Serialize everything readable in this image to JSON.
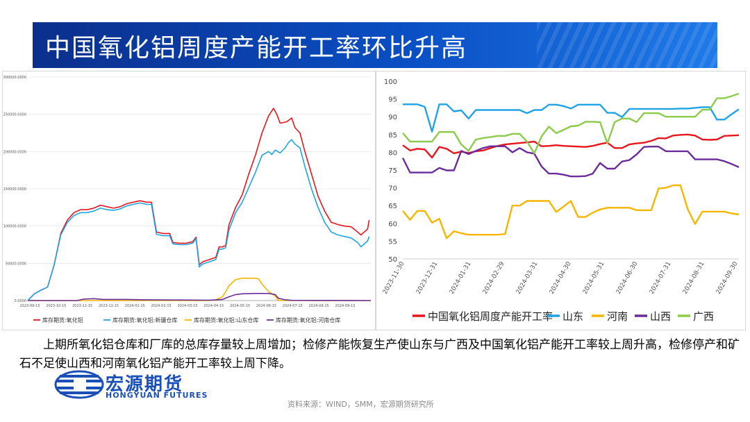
{
  "header": {
    "title": "中国氧化铝周度产能开工率环比升高"
  },
  "description": "上期所氧化铝仓库和厂库的总库存量较上周增加；检修产能恢复生产使山东与广西及中国氧化铝产能开工率较上周升高，检修停产和矿石不足使山西和河南氧化铝产能开工率较上周下降。",
  "logo": {
    "name_cn": "宏源期货",
    "name_en": "HONGYUAN FUTURES"
  },
  "source": "资料来源：WIND，SMM，宏源期货研究所",
  "colors": {
    "title_bg": "#0a4fc4",
    "red": "#e8151b",
    "blue": "#1fa3e6",
    "yellow": "#f7b500",
    "purple": "#6a2c9a",
    "green": "#8ccb4a"
  },
  "chart_data": [
    {
      "type": "line",
      "ylim": [
        0,
        300000
      ],
      "yticks": [
        "0.0000",
        "50000.0000",
        "100000.0000",
        "150000.0000",
        "200000.0000",
        "250000.0000",
        "300000.0000"
      ],
      "xticks": [
        "2023-09-15",
        "2023-10-15",
        "2023-11-15",
        "2023-12-15",
        "2024-01-15",
        "2024-02-15",
        "2024-03-15",
        "2024-04-15",
        "2024-05-15",
        "2024-06-15",
        "2024-07-15",
        "2024-08-15",
        "2024-09-15"
      ],
      "legend_position": "bottom",
      "series": [
        {
          "name": "库存期货:氧化铝",
          "color": "#e8151b",
          "points": [
            [
              0,
              0
            ],
            [
              4,
              9000
            ],
            [
              8,
              14000
            ],
            [
              12,
              18000
            ],
            [
              16,
              48000
            ],
            [
              20,
              90000
            ],
            [
              24,
              108000
            ],
            [
              28,
              118000
            ],
            [
              32,
              122000
            ],
            [
              36,
              122000
            ],
            [
              40,
              124000
            ],
            [
              44,
              128000
            ],
            [
              48,
              126000
            ],
            [
              52,
              124000
            ],
            [
              56,
              126000
            ],
            [
              60,
              130000
            ],
            [
              64,
              132000
            ],
            [
              68,
              134000
            ],
            [
              72,
              132000
            ],
            [
              75,
              132000
            ],
            [
              78,
              92000
            ],
            [
              82,
              90000
            ],
            [
              86,
              90000
            ],
            [
              88,
              78000
            ],
            [
              92,
              77000
            ],
            [
              96,
              77000
            ],
            [
              100,
              79000
            ],
            [
              102,
              85000
            ],
            [
              104,
              48000
            ],
            [
              106,
              52000
            ],
            [
              110,
              55000
            ],
            [
              114,
              58000
            ],
            [
              116,
              72000
            ],
            [
              118,
              72000
            ],
            [
              120,
              74000
            ],
            [
              122,
              102000
            ],
            [
              126,
              125000
            ],
            [
              130,
              142000
            ],
            [
              134,
              170000
            ],
            [
              138,
              195000
            ],
            [
              142,
              225000
            ],
            [
              146,
              248000
            ],
            [
              149,
              258000
            ],
            [
              151,
              250000
            ],
            [
              153,
              238000
            ],
            [
              157,
              240000
            ],
            [
              160,
              245000
            ],
            [
              162,
              232000
            ],
            [
              165,
              225000
            ],
            [
              168,
              200000
            ],
            [
              172,
              170000
            ],
            [
              176,
              140000
            ],
            [
              180,
              120000
            ],
            [
              184,
              105000
            ],
            [
              188,
              102000
            ],
            [
              192,
              100000
            ],
            [
              196,
              99000
            ],
            [
              200,
              92000
            ],
            [
              202,
              88000
            ],
            [
              204,
              92000
            ],
            [
              206,
              96000
            ],
            [
              207,
              108000
            ]
          ]
        },
        {
          "name": "库存期货:氧化铝:新疆仓库",
          "color": "#1fa3e6",
          "points": [
            [
              0,
              0
            ],
            [
              4,
              9000
            ],
            [
              8,
              14000
            ],
            [
              12,
              18000
            ],
            [
              16,
              48000
            ],
            [
              20,
              88000
            ],
            [
              24,
              105000
            ],
            [
              28,
              114000
            ],
            [
              32,
              118000
            ],
            [
              36,
              118000
            ],
            [
              40,
              120000
            ],
            [
              44,
              124000
            ],
            [
              48,
              122000
            ],
            [
              52,
              121000
            ],
            [
              56,
              123000
            ],
            [
              60,
              127000
            ],
            [
              64,
              129000
            ],
            [
              68,
              131000
            ],
            [
              72,
              129000
            ],
            [
              75,
              129000
            ],
            [
              78,
              89000
            ],
            [
              82,
              87000
            ],
            [
              86,
              87000
            ],
            [
              88,
              76000
            ],
            [
              92,
              75000
            ],
            [
              96,
              75000
            ],
            [
              100,
              77000
            ],
            [
              102,
              83000
            ],
            [
              104,
              45000
            ],
            [
              106,
              49000
            ],
            [
              110,
              52000
            ],
            [
              114,
              55000
            ],
            [
              116,
              69000
            ],
            [
              118,
              69000
            ],
            [
              120,
              71000
            ],
            [
              122,
              95000
            ],
            [
              126,
              118000
            ],
            [
              130,
              132000
            ],
            [
              134,
              152000
            ],
            [
              138,
              172000
            ],
            [
              142,
              195000
            ],
            [
              146,
              200000
            ],
            [
              148,
              196000
            ],
            [
              150,
              202000
            ],
            [
              153,
              198000
            ],
            [
              156,
              205000
            ],
            [
              158,
              212000
            ],
            [
              160,
              216000
            ],
            [
              162,
              210000
            ],
            [
              165,
              205000
            ],
            [
              168,
              180000
            ],
            [
              172,
              150000
            ],
            [
              176,
              125000
            ],
            [
              180,
              105000
            ],
            [
              184,
              92000
            ],
            [
              188,
              88000
            ],
            [
              192,
              86000
            ],
            [
              196,
              84000
            ],
            [
              200,
              78000
            ],
            [
              202,
              72000
            ],
            [
              204,
              76000
            ],
            [
              206,
              80000
            ],
            [
              207,
              86000
            ]
          ]
        },
        {
          "name": "库存期货:氧化铝:山东仓库",
          "color": "#f7b500",
          "points": [
            [
              0,
              0
            ],
            [
              110,
              0
            ],
            [
              114,
              1000
            ],
            [
              118,
              5000
            ],
            [
              120,
              12000
            ],
            [
              122,
              20000
            ],
            [
              126,
              28000
            ],
            [
              130,
              30000
            ],
            [
              134,
              30000
            ],
            [
              138,
              30000
            ],
            [
              140,
              29000
            ],
            [
              142,
              22000
            ],
            [
              146,
              12000
            ],
            [
              150,
              6000
            ],
            [
              152,
              0
            ],
            [
              208,
              0
            ]
          ]
        },
        {
          "name": "库存期货:氧化铝:河南仓库",
          "color": "#6a2c9a",
          "points": [
            [
              0,
              0
            ],
            [
              30,
              0
            ],
            [
              34,
              2000
            ],
            [
              40,
              2500
            ],
            [
              46,
              1500
            ],
            [
              60,
              1500
            ],
            [
              70,
              1000
            ],
            [
              80,
              800
            ],
            [
              110,
              500
            ],
            [
              118,
              1500
            ],
            [
              122,
              5000
            ],
            [
              126,
              8000
            ],
            [
              130,
              9000
            ],
            [
              138,
              9500
            ],
            [
              146,
              9500
            ],
            [
              150,
              8000
            ],
            [
              152,
              3000
            ],
            [
              156,
              1000
            ],
            [
              160,
              300
            ],
            [
              208,
              0
            ]
          ]
        }
      ]
    },
    {
      "type": "line",
      "ylim": [
        50,
        100
      ],
      "yticks": [
        "50",
        "55",
        "60",
        "65",
        "70",
        "75",
        "80",
        "85",
        "90",
        "95",
        "100"
      ],
      "xticks": [
        "2023-11-30",
        "2023-12-31",
        "2024-01-31",
        "2024-02-29",
        "2024-03-31",
        "2024-04-30",
        "2024-05-31",
        "2024-06-30",
        "2024-07-31",
        "2024-08-31",
        "2024-09-30"
      ],
      "legend_position": "bottom",
      "series": [
        {
          "name": "中国氧化铝周度产能开工率",
          "color": "#e8151b",
          "values": [
            82,
            80.5,
            81,
            80.8,
            78.5,
            81.5,
            81,
            79.7,
            80.2,
            79.8,
            80.3,
            80.5,
            81.2,
            81.8,
            82.2,
            82.4,
            82.6,
            82.8,
            83,
            81.7,
            81.8,
            82,
            81.8,
            81.7,
            81.6,
            81.5,
            81.8,
            82.3,
            82.7,
            81.2,
            81.2,
            82.2,
            82.5,
            82.7,
            83.2,
            84,
            83.9,
            84.7,
            84.9,
            85,
            84.7,
            83.6,
            83.5,
            83.6,
            84.6,
            84.7,
            84.8
          ]
        },
        {
          "name": "山东",
          "color": "#1fa3e6",
          "values": [
            93.5,
            93.5,
            93.5,
            92.8,
            85.8,
            93.5,
            93.5,
            91.5,
            91.8,
            89.5,
            91.9,
            91.9,
            91.9,
            91.9,
            91.9,
            91.9,
            91.9,
            91,
            91.9,
            91.9,
            93.4,
            93.4,
            93,
            92.3,
            93.4,
            93.4,
            93.4,
            93.4,
            91.1,
            91.1,
            89.9,
            92.2,
            92.2,
            92.2,
            92.2,
            92.2,
            92.2,
            92.2,
            92.3,
            92.3,
            92.5,
            92.7,
            92.7,
            89.2,
            89.2,
            90.7,
            92.1
          ]
        },
        {
          "name": "河南",
          "color": "#f7b500",
          "values": [
            63.5,
            61,
            63.5,
            63.5,
            60.2,
            61.3,
            55.8,
            57.8,
            57.2,
            56.8,
            56.8,
            56.8,
            56.8,
            56.8,
            57,
            65,
            65,
            66.3,
            66.3,
            66.3,
            66.3,
            63.2,
            64.7,
            66.3,
            61.8,
            61.8,
            63,
            63.9,
            64.4,
            64.4,
            64.4,
            64.4,
            63.7,
            63.7,
            63.7,
            69.8,
            70,
            70.7,
            70.7,
            64,
            59.8,
            63.3,
            63.3,
            63.3,
            63.3,
            62.8,
            62.5
          ]
        },
        {
          "name": "山西",
          "color": "#6a2c9a",
          "values": [
            78.4,
            74.3,
            74.3,
            74.3,
            74.3,
            75.6,
            74.9,
            74.9,
            80.4,
            79.5,
            80.4,
            81.2,
            81.7,
            81.7,
            81.7,
            80,
            81.2,
            80,
            79.6,
            76,
            74,
            74,
            73.7,
            73.2,
            73.2,
            73.3,
            74,
            77,
            75.4,
            75.4,
            77.4,
            77.8,
            79.4,
            81.5,
            81.6,
            81.6,
            80.3,
            80.3,
            80.3,
            80.3,
            78,
            78,
            78,
            78,
            77.5,
            76.7,
            75.8
          ]
        },
        {
          "name": "广西",
          "color": "#8ccb4a",
          "values": [
            85.4,
            83,
            83,
            83,
            83,
            85.7,
            85.7,
            85.7,
            82.2,
            80.4,
            83.6,
            84,
            84.3,
            84.6,
            84.6,
            85.2,
            85.2,
            83,
            79.7,
            84.5,
            87.2,
            85.4,
            86.3,
            87.3,
            87.5,
            88.6,
            88.6,
            88.5,
            82.5,
            88.5,
            89.5,
            89.5,
            88.5,
            91,
            91,
            91,
            90,
            90,
            90,
            90,
            90,
            92,
            92,
            95.2,
            95.2,
            95.8,
            96.5
          ]
        }
      ]
    }
  ]
}
